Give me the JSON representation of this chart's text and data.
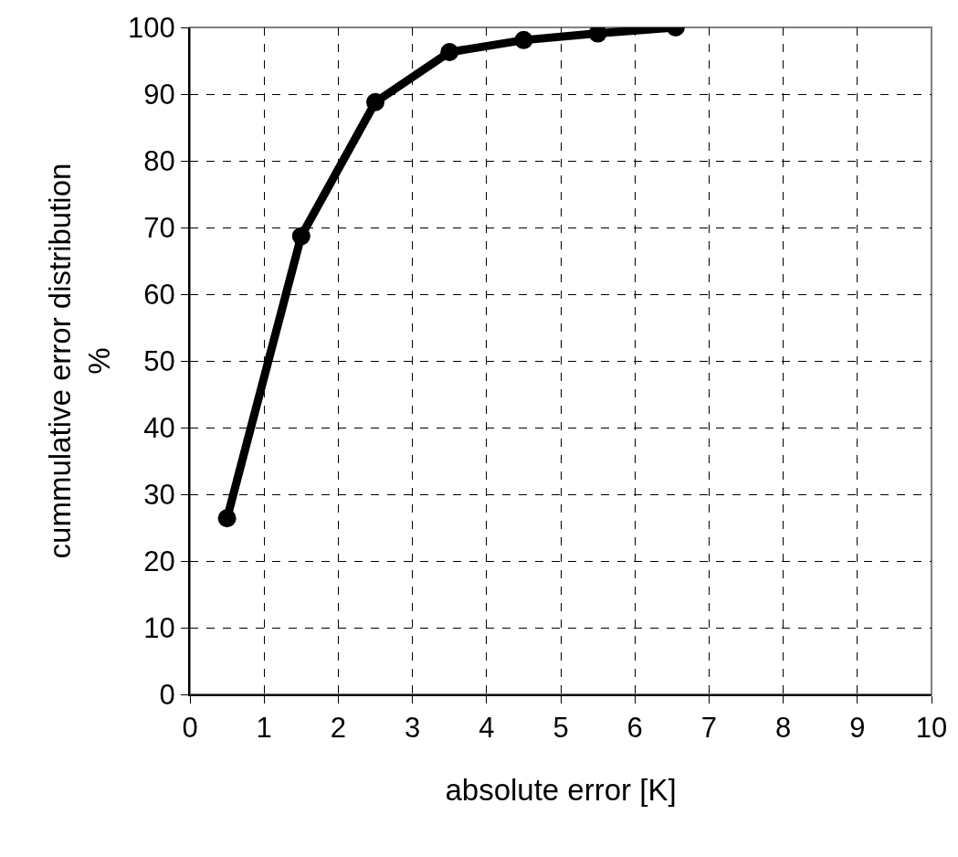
{
  "chart_data": {
    "type": "line",
    "xlabel": "absolute error [K]",
    "ylabel": "cummulative error distribution\n%",
    "x": [
      0.5,
      1.5,
      2.5,
      3.5,
      4.5,
      5.5,
      6.55
    ],
    "series": [
      {
        "color": "#000000",
        "values": [
          26.4,
          68.7,
          88.8,
          96.3,
          98.1,
          99.1,
          100
        ]
      }
    ],
    "xlim": [
      0,
      10
    ],
    "xticks": [
      0,
      1,
      2,
      3,
      4,
      5,
      6,
      7,
      8,
      9,
      10
    ],
    "ylim": [
      0,
      100
    ],
    "yticks": [
      0,
      10,
      20,
      30,
      40,
      50,
      60,
      70,
      80,
      90,
      100
    ],
    "grid": true,
    "marker": "circle",
    "line_style": "solid"
  }
}
